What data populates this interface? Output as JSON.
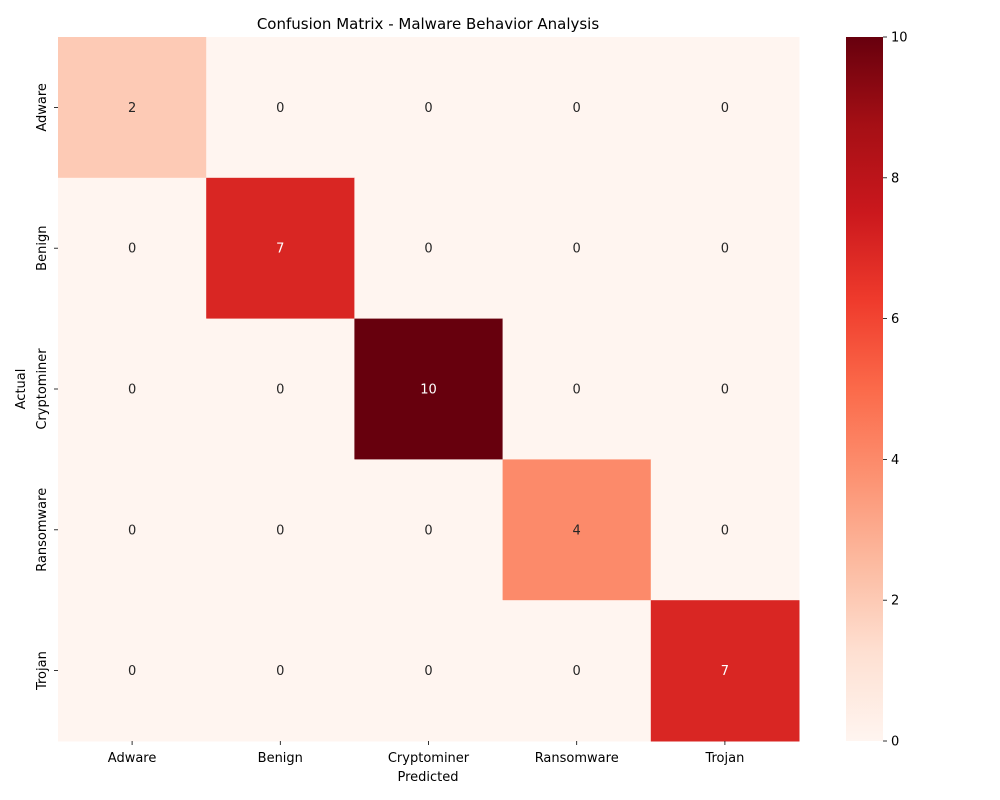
{
  "chart_data": {
    "type": "heatmap",
    "title": "Confusion Matrix - Malware Behavior Analysis",
    "xlabel": "Predicted",
    "ylabel": "Actual",
    "x_categories": [
      "Adware",
      "Benign",
      "Cryptominer",
      "Ransomware",
      "Trojan"
    ],
    "y_categories": [
      "Adware",
      "Benign",
      "Cryptominer",
      "Ransomware",
      "Trojan"
    ],
    "values": [
      [
        2,
        0,
        0,
        0,
        0
      ],
      [
        0,
        7,
        0,
        0,
        0
      ],
      [
        0,
        0,
        10,
        0,
        0
      ],
      [
        0,
        0,
        0,
        4,
        0
      ],
      [
        0,
        0,
        0,
        0,
        7
      ]
    ],
    "colorbar": {
      "min": 0,
      "max": 10,
      "ticks": [
        0,
        2,
        4,
        6,
        8,
        10
      ]
    },
    "colormap": "Reds",
    "grid": false
  }
}
